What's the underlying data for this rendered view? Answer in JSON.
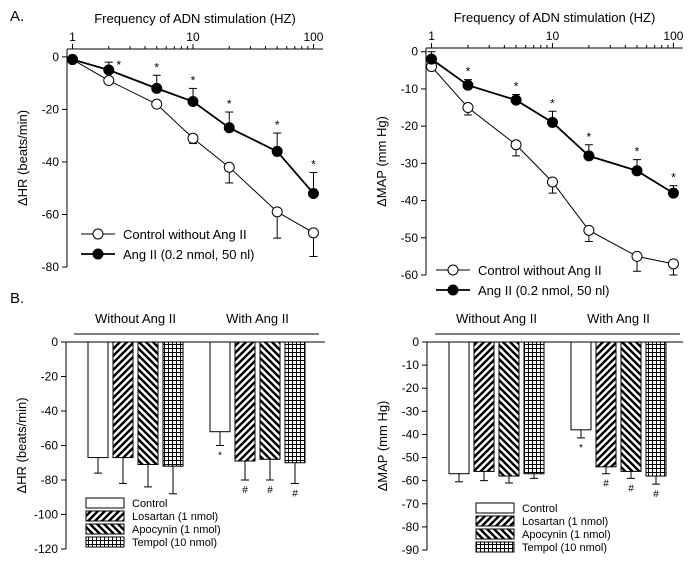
{
  "panel_labels": [
    "A.",
    "B."
  ],
  "chart_data": [
    {
      "type": "line",
      "panel": "A-left",
      "title": "",
      "xlabel": "Frequency of ADN stimulation (HZ)",
      "ylabel": "ΔHR (beats/min)",
      "x_scale": "log",
      "x_axis_position": "top",
      "xlim": [
        0.9,
        120
      ],
      "ylim": [
        -80,
        3
      ],
      "x_ticks": [
        1,
        10,
        100
      ],
      "y_ticks": [
        0,
        -20,
        -40,
        -60,
        -80
      ],
      "x": [
        1,
        2,
        5,
        10,
        20,
        50,
        100
      ],
      "legend_position": "bottom-left",
      "series": [
        {
          "name": "Control without Ang II",
          "marker": "open-circle",
          "values": [
            -1,
            -9,
            -18,
            -31,
            -42,
            -59,
            -67
          ],
          "errors": [
            0,
            0,
            0,
            2,
            6,
            10,
            9
          ]
        },
        {
          "name": "Ang II (0.2 nmol, 50 nl)",
          "marker": "filled-circle",
          "values": [
            -1,
            -5,
            -12,
            -17,
            -27,
            -36,
            -52
          ],
          "errors": [
            0,
            3,
            5,
            5,
            6,
            7,
            8
          ]
        }
      ],
      "annotations": {
        "symbol": "*",
        "at_x": [
          2,
          5,
          10,
          20,
          50,
          100
        ]
      }
    },
    {
      "type": "line",
      "panel": "A-right",
      "title": "",
      "xlabel": "Frequency of ADN stimulation (HZ)",
      "ylabel": "ΔMAP (mm Hg)",
      "x_scale": "log",
      "x_axis_position": "top",
      "xlim": [
        0.9,
        120
      ],
      "ylim": [
        -60,
        1
      ],
      "x_ticks": [
        1,
        10,
        100
      ],
      "y_ticks": [
        0,
        -10,
        -20,
        -30,
        -40,
        -50,
        -60
      ],
      "x": [
        1,
        2,
        5,
        10,
        20,
        50,
        100
      ],
      "legend_position": "bottom-left",
      "series": [
        {
          "name": "Control without Ang II",
          "marker": "open-circle",
          "values": [
            -4,
            -15,
            -25,
            -35,
            -48,
            -55,
            -57
          ],
          "errors": [
            0,
            2,
            3,
            3,
            3,
            4,
            3
          ]
        },
        {
          "name": "Ang II (0.2 nmol, 50 nl)",
          "marker": "filled-circle",
          "values": [
            -2,
            -9,
            -13,
            -19,
            -28,
            -32,
            -38
          ],
          "errors": [
            2,
            1.5,
            1.5,
            3,
            3,
            3,
            2
          ]
        }
      ],
      "annotations": {
        "symbol": "*",
        "at_x": [
          2,
          5,
          10,
          20,
          50,
          100
        ]
      }
    },
    {
      "type": "bar",
      "panel": "B-left",
      "title": "",
      "xlabel": "",
      "ylabel": "ΔHR (beats/min)",
      "ylim": [
        -120,
        0
      ],
      "y_ticks": [
        0,
        -20,
        -40,
        -60,
        -80,
        -100,
        -120
      ],
      "groups": [
        "Without Ang II",
        "With Ang II"
      ],
      "legend_position": "bottom-left",
      "series": [
        {
          "name": "Control",
          "pattern": "white",
          "values": [
            -67,
            -52
          ],
          "errors": [
            9,
            8
          ],
          "marks": [
            "",
            "*"
          ]
        },
        {
          "name": "Losartan (1 nmol)",
          "pattern": "diagonal-up",
          "values": [
            -67,
            -69
          ],
          "errors": [
            15,
            11
          ],
          "marks": [
            "",
            "#"
          ]
        },
        {
          "name": "Apocynin (1 nmol)",
          "pattern": "diagonal-down",
          "values": [
            -71,
            -68
          ],
          "errors": [
            13,
            12
          ],
          "marks": [
            "",
            "#"
          ]
        },
        {
          "name": "Tempol (10 nmol)",
          "pattern": "grid",
          "values": [
            -72,
            -70
          ],
          "errors": [
            16,
            12
          ],
          "marks": [
            "",
            "#"
          ]
        }
      ]
    },
    {
      "type": "bar",
      "panel": "B-right",
      "title": "",
      "xlabel": "",
      "ylabel": "ΔMAP (mm Hg)",
      "ylim": [
        -90,
        0
      ],
      "y_ticks": [
        0,
        -10,
        -20,
        -30,
        -40,
        -50,
        -60,
        -70,
        -80,
        -90
      ],
      "groups": [
        "Without Ang II",
        "With Ang II"
      ],
      "legend_position": "bottom-left",
      "series": [
        {
          "name": "Control",
          "pattern": "white",
          "values": [
            -57,
            -38
          ],
          "errors": [
            3.5,
            3.5
          ],
          "marks": [
            "",
            "*"
          ]
        },
        {
          "name": "Losartan (1 nmol)",
          "pattern": "diagonal-up",
          "values": [
            -56,
            -54
          ],
          "errors": [
            4,
            3
          ],
          "marks": [
            "",
            "#"
          ]
        },
        {
          "name": "Apocynin (1 nmol)",
          "pattern": "diagonal-down",
          "values": [
            -58,
            -56
          ],
          "errors": [
            3,
            3
          ],
          "marks": [
            "",
            "#"
          ]
        },
        {
          "name": "Tempol (10 nmol)",
          "pattern": "grid",
          "values": [
            -57,
            -58
          ],
          "errors": [
            2,
            3.5
          ],
          "marks": [
            "",
            "#"
          ]
        }
      ]
    }
  ]
}
